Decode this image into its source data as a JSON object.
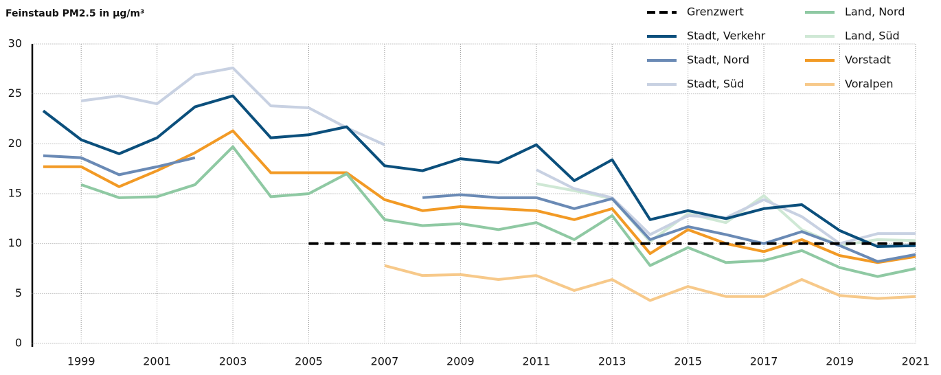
{
  "chart_data": {
    "type": "line",
    "title": "Feinstaub PM2.5 in µg/m³",
    "x": [
      1998,
      1999,
      2000,
      2001,
      2002,
      2003,
      2004,
      2005,
      2006,
      2007,
      2008,
      2009,
      2010,
      2011,
      2012,
      2013,
      2014,
      2015,
      2016,
      2017,
      2018,
      2019,
      2020,
      2021
    ],
    "xlim": [
      1997.7,
      2021
    ],
    "xticks": [
      1999,
      2001,
      2003,
      2005,
      2007,
      2009,
      2011,
      2013,
      2015,
      2017,
      2019,
      2021
    ],
    "ylim": [
      0,
      30
    ],
    "yticks": [
      0,
      5,
      10,
      15,
      20,
      25,
      30
    ],
    "grid": true,
    "legend": "top-right",
    "series": [
      {
        "name": "Grenzwert",
        "color": "#000000",
        "style": "dashed",
        "values": [
          null,
          null,
          null,
          null,
          null,
          null,
          null,
          10,
          10,
          10,
          10,
          10,
          10,
          10,
          10,
          10,
          10,
          10,
          10,
          10,
          10,
          10,
          10,
          10
        ]
      },
      {
        "name": "Stadt, Verkehr",
        "color": "#0b4f7c",
        "values": [
          23.3,
          20.4,
          19.0,
          20.6,
          23.7,
          24.8,
          20.6,
          20.9,
          21.7,
          17.8,
          17.3,
          18.5,
          18.1,
          19.9,
          16.3,
          18.4,
          12.4,
          13.3,
          12.5,
          13.5,
          13.9,
          11.3,
          9.7,
          9.8
        ]
      },
      {
        "name": "Stadt, Nord",
        "color": "#6a8ab5",
        "values": [
          18.8,
          18.6,
          16.9,
          17.7,
          18.6,
          null,
          null,
          null,
          null,
          null,
          14.6,
          14.9,
          14.6,
          14.6,
          13.5,
          14.5,
          10.4,
          11.7,
          10.9,
          10.0,
          11.2,
          9.8,
          8.2,
          8.9
        ]
      },
      {
        "name": "Stadt, Süd",
        "color": "#c8d1e2",
        "values": [
          null,
          24.3,
          24.8,
          24.0,
          26.9,
          27.6,
          23.8,
          23.6,
          21.6,
          19.9,
          null,
          null,
          null,
          17.4,
          15.5,
          14.6,
          10.9,
          12.8,
          12.6,
          14.4,
          12.7,
          10.0,
          11.0,
          11.0
        ]
      },
      {
        "name": "Land, Nord",
        "color": "#8fc9a3",
        "values": [
          null,
          15.9,
          14.6,
          14.7,
          15.9,
          19.7,
          14.7,
          15.0,
          17.0,
          12.4,
          11.8,
          12.0,
          11.4,
          12.1,
          10.4,
          12.8,
          7.8,
          9.6,
          8.1,
          8.3,
          9.3,
          7.6,
          6.7,
          7.5
        ]
      },
      {
        "name": "Land, Süd",
        "color": "#cfe8d5",
        "values": [
          null,
          null,
          null,
          null,
          null,
          null,
          null,
          null,
          null,
          null,
          null,
          null,
          null,
          16.0,
          15.3,
          14.5,
          10.2,
          13.0,
          12.1,
          14.8,
          11.4,
          9.8,
          10.4,
          10.3
        ]
      },
      {
        "name": "Vorstadt",
        "color": "#f29a25",
        "values": [
          17.7,
          17.7,
          15.7,
          17.3,
          19.1,
          21.3,
          17.1,
          17.1,
          17.1,
          14.4,
          13.3,
          13.7,
          13.5,
          13.3,
          12.4,
          13.5,
          9.0,
          11.4,
          10.0,
          9.2,
          10.4,
          8.8,
          8.1,
          8.7
        ]
      },
      {
        "name": "Voralpen",
        "color": "#f7c98a",
        "values": [
          null,
          null,
          null,
          null,
          null,
          null,
          null,
          null,
          null,
          7.8,
          6.8,
          6.9,
          6.4,
          6.8,
          5.3,
          6.4,
          4.3,
          5.7,
          4.7,
          4.7,
          6.4,
          4.8,
          4.5,
          4.7
        ]
      }
    ]
  }
}
